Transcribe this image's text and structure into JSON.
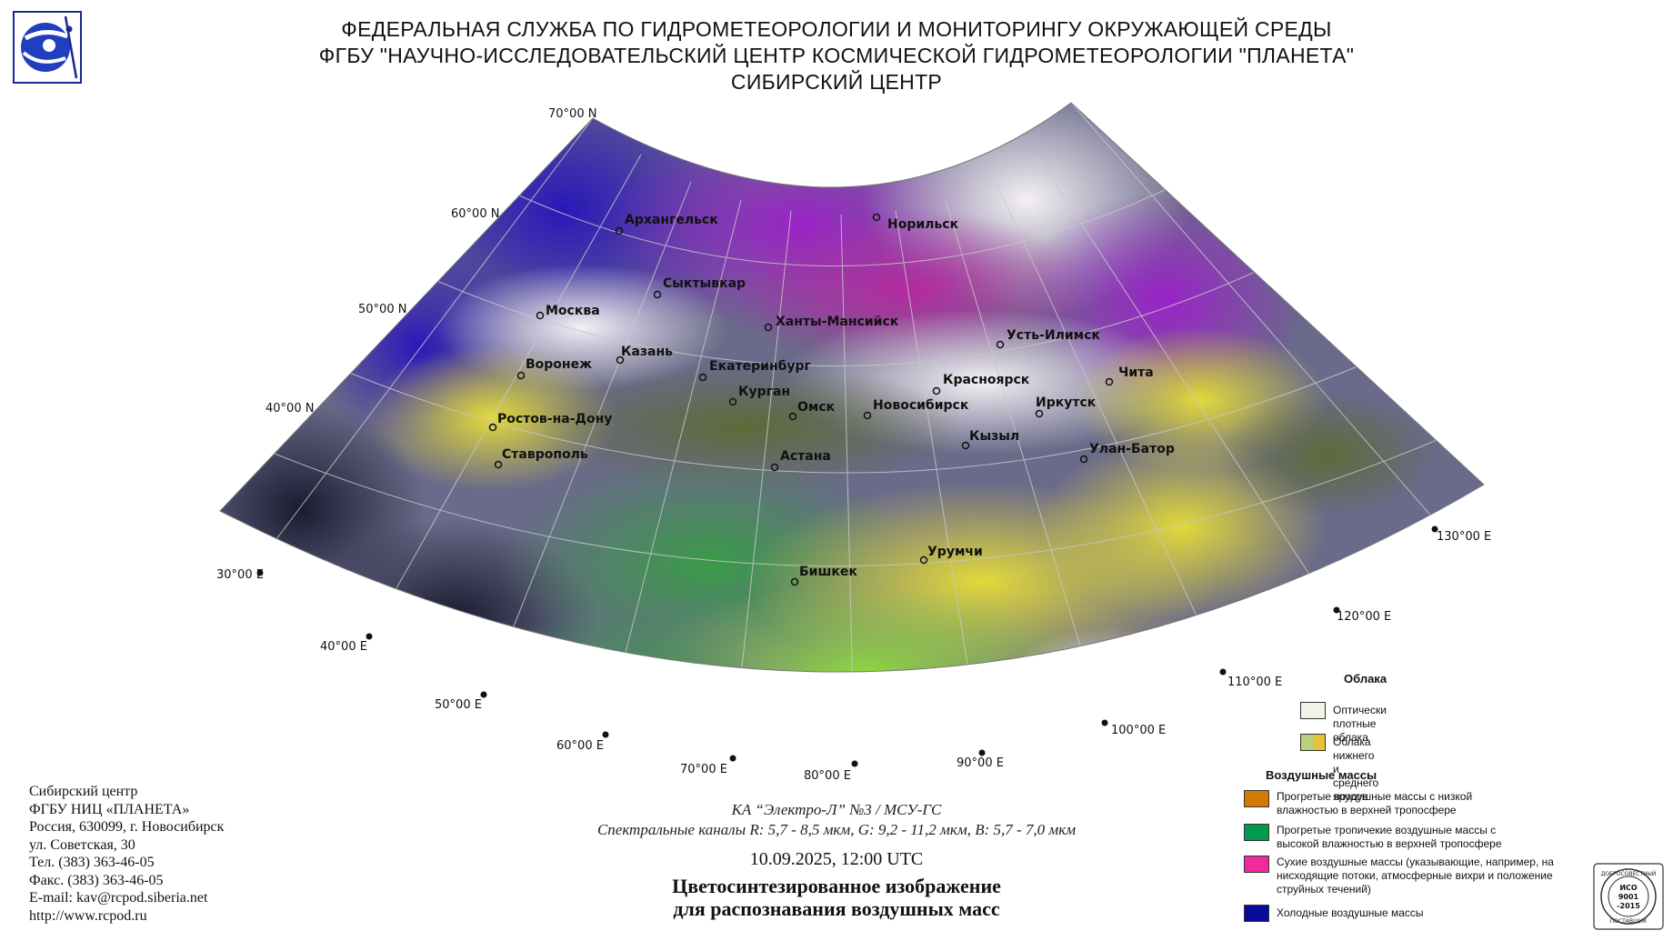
{
  "header": {
    "line1": "ФЕДЕРАЛЬНАЯ СЛУЖБА ПО ГИДРОМЕТЕОРОЛОГИИ И МОНИТОРИНГУ ОКРУЖАЮЩЕЙ СРЕДЫ",
    "line2": "ФГБУ \"НАУЧНО-ИССЛЕДОВАТЕЛЬСКИЙ ЦЕНТР КОСМИЧЕСКОЙ ГИДРОМЕТЕОРОЛОГИИ \"ПЛАНЕТА\"",
    "line3": "СИБИРСКИЙ ЦЕНТР"
  },
  "map": {
    "latitude_labels": [
      "70°00 N",
      "60°00 N",
      "50°00 N",
      "40°00 N"
    ],
    "longitude_labels": [
      "30°00 E",
      "40°00 E",
      "50°00 E",
      "60°00 E",
      "70°00 E",
      "80°00 E",
      "90°00 E",
      "100°00 E",
      "110°00 E",
      "120°00 E",
      "130°00 E"
    ],
    "cities": [
      "Архангельск",
      "Норильск",
      "Сыктывкар",
      "Москва",
      "Ханты-Мансийск",
      "Казань",
      "Усть-Илимск",
      "Воронеж",
      "Екатеринбург",
      "Красноярск",
      "Чита",
      "Курган",
      "Омск",
      "Новосибирск",
      "Иркутск",
      "Ростов-на-Дону",
      "Кызыл",
      "Ставрополь",
      "Улан-Батор",
      "Астана",
      "Урумчи",
      "Бишкек"
    ]
  },
  "info": {
    "line1": "Сибирский центр",
    "line2": "ФГБУ НИЦ «ПЛАНЕТА»",
    "line3": "Россия, 630099, г. Новосибирск",
    "line4": "ул. Советская, 30",
    "line5": "Тел. (383) 363-46-05",
    "line6": "Факс. (383) 363-46-05",
    "line7": "E-mail: kav@rcpod.siberia.net",
    "line8": "http://www.rcpod.ru"
  },
  "satellite": {
    "line1": "КА “Электро-Л” №3 / МСУ-ГС",
    "line2": "Спектральные каналы R: 5,7 - 8,5 мкм, G: 9,2 - 11,2 мкм, B: 5,7 - 7,0 мкм"
  },
  "datetime": "10.09.2025, 12:00 UTC",
  "title": {
    "line1": "Цветосинтезированное изображение",
    "line2": "для распознавания воздушных масс"
  },
  "legend": {
    "clouds_heading": "Облака",
    "clouds": [
      {
        "label": "Оптически плотные облака",
        "color": "#f2f2e6"
      },
      {
        "label": "Облака нижнего и среднего ярусов",
        "color": "#b8d27a",
        "color2": "#e8c23a"
      }
    ],
    "airmass_heading": "Воздушные массы",
    "airmasses": [
      {
        "label": "Прогретые воздушные массы с низкой влажностью в верхней тропосфере",
        "color": "#d27a00"
      },
      {
        "label": "Прогретые тропичекие воздушные массы с высокой влажностью в верхней тропосфере",
        "color": "#009a4e"
      },
      {
        "label": "Сухие воздушные массы (указывающие, например, на нисходящие потоки, атмосферные вихри и положение струйных течений)",
        "color": "#f02a9a"
      },
      {
        "label": "Холодные воздушные массы",
        "color": "#0a0a9a"
      }
    ]
  },
  "stamp": {
    "top": "ДОБРОСОВЕСТНЫЙ",
    "line1": "ИСО",
    "line2": "9001",
    "line3": "-2015",
    "bottom": "ПОСТАВЩИК"
  }
}
